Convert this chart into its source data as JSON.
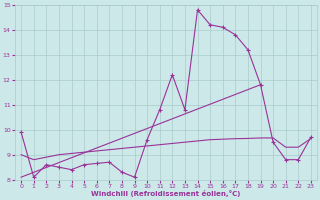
{
  "xlabel": "Windchill (Refroidissement éolien,°C)",
  "bg_color": "#cce8e8",
  "line_color": "#993399",
  "grid_color": "#aacccc",
  "line1_x": [
    0,
    1,
    2,
    3,
    4,
    5,
    6,
    7,
    8,
    9,
    10,
    11,
    12,
    13,
    14,
    15,
    16,
    17,
    18,
    19,
    20,
    21,
    22,
    23
  ],
  "line1_y": [
    9.9,
    8.1,
    8.6,
    8.5,
    8.4,
    8.6,
    8.65,
    8.7,
    8.3,
    8.1,
    9.6,
    10.8,
    12.2,
    10.8,
    14.8,
    14.2,
    14.1,
    13.8,
    13.2,
    11.8,
    9.5,
    8.8,
    8.8,
    9.7
  ],
  "line2_x": [
    0,
    19
  ],
  "line2_y": [
    8.1,
    11.8
  ],
  "line3_x": [
    0,
    1,
    2,
    3,
    4,
    5,
    6,
    7,
    8,
    9,
    10,
    11,
    12,
    13,
    14,
    15,
    16,
    17,
    18,
    19,
    20,
    21,
    22,
    23
  ],
  "line3_y": [
    9.0,
    8.8,
    8.9,
    9.0,
    9.05,
    9.1,
    9.15,
    9.2,
    9.25,
    9.3,
    9.35,
    9.4,
    9.45,
    9.5,
    9.55,
    9.6,
    9.62,
    9.64,
    9.65,
    9.67,
    9.67,
    9.3,
    9.3,
    9.65
  ],
  "xlim": [
    -0.5,
    23.5
  ],
  "ylim": [
    8,
    15
  ],
  "yticks": [
    8,
    9,
    10,
    11,
    12,
    13,
    14,
    15
  ],
  "xticks": [
    0,
    1,
    2,
    3,
    4,
    5,
    6,
    7,
    8,
    9,
    10,
    11,
    12,
    13,
    14,
    15,
    16,
    17,
    18,
    19,
    20,
    21,
    22,
    23
  ]
}
